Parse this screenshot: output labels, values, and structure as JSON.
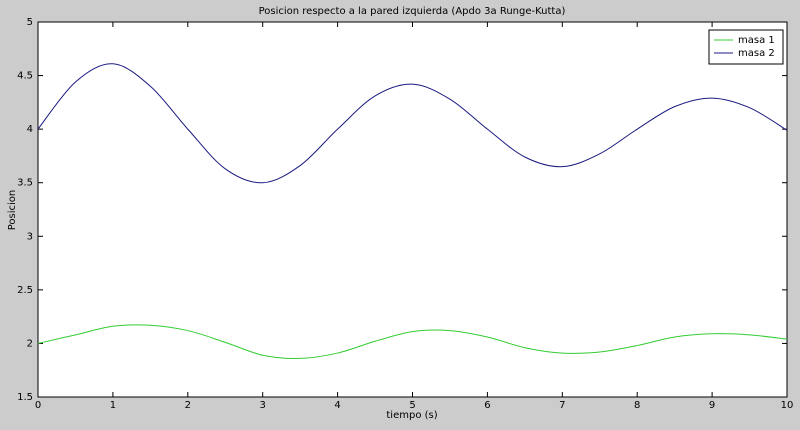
{
  "chart_data": {
    "type": "line",
    "title": "Posicion respecto a la pared izquierda (Apdo 3a Runge-Kutta)",
    "xlabel": "tiempo (s)",
    "ylabel": "Posicion",
    "x": [
      0,
      0.5,
      1,
      1.5,
      2,
      2.5,
      3,
      3.5,
      4,
      4.5,
      5,
      5.5,
      6,
      6.5,
      7,
      7.5,
      8,
      8.5,
      9,
      9.5,
      10
    ],
    "series": [
      {
        "name": "masa 1",
        "color": "#33cc33",
        "values": [
          2.0,
          2.08,
          2.16,
          2.17,
          2.12,
          2.01,
          1.89,
          1.86,
          1.91,
          2.02,
          2.11,
          2.12,
          2.06,
          1.96,
          1.91,
          1.92,
          1.98,
          2.06,
          2.09,
          2.08,
          2.04
        ]
      },
      {
        "name": "masa 2",
        "color": "#1a1a80",
        "values": [
          4.0,
          4.44,
          4.61,
          4.4,
          4.0,
          3.63,
          3.5,
          3.66,
          4.0,
          4.31,
          4.42,
          4.28,
          4.0,
          3.74,
          3.65,
          3.77,
          4.0,
          4.21,
          4.29,
          4.2,
          3.99
        ]
      }
    ],
    "xlim": [
      0,
      10
    ],
    "ylim": [
      1.5,
      5
    ],
    "xticks": [
      0,
      1,
      2,
      3,
      4,
      5,
      6,
      7,
      8,
      9,
      10
    ],
    "yticks": [
      1.5,
      2,
      2.5,
      3,
      3.5,
      4,
      4.5,
      5
    ],
    "legend": "top-right",
    "grid": false
  }
}
